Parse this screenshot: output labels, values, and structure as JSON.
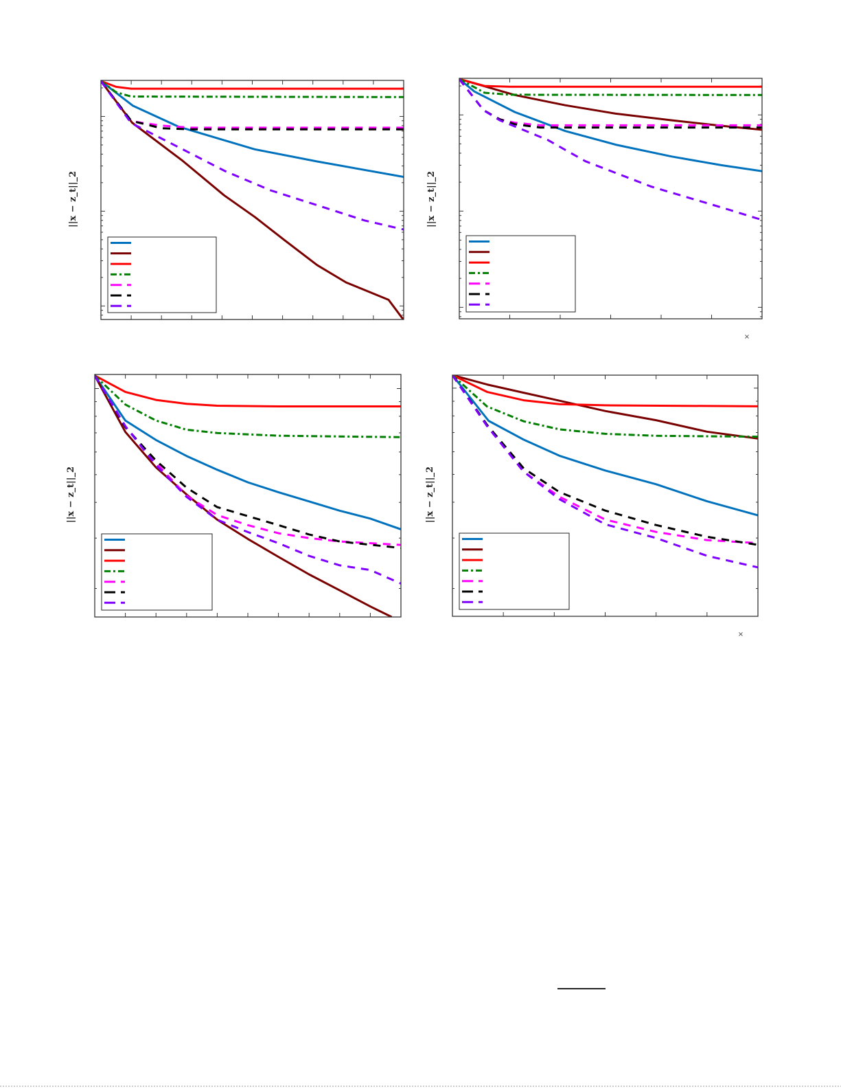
{
  "colors": {
    "blue": "#0072BD",
    "dark_red": "#7A0000",
    "red": "#FF0000",
    "green": "#007F00",
    "magenta": "#FF00FF",
    "black": "#000000",
    "purple": "#7F00FF"
  },
  "chart_data": [
    {
      "type": "line",
      "ylabel": "||x − z_t||_2",
      "yscale": "log",
      "xlim": [
        0,
        10
      ],
      "ylim": [
        0.0072,
        2.4
      ],
      "grid": false,
      "legend_placement": "bottom-left",
      "tick_labels_shown": false,
      "series": [
        {
          "color": "blue",
          "style": "solid",
          "x": [
            0,
            1.05,
            2.56,
            5.08,
            7.14,
            10
          ],
          "y": [
            2.36,
            1.3,
            0.78,
            0.45,
            0.335,
            0.23
          ]
        },
        {
          "color": "dark_red",
          "style": "solid",
          "x": [
            0,
            1.03,
            2.7,
            4.07,
            5.08,
            6.08,
            7.14,
            8.1,
            9.5,
            10
          ],
          "y": [
            2.36,
            0.86,
            0.34,
            0.147,
            0.087,
            0.049,
            0.027,
            0.0177,
            0.0116,
            0.0071
          ]
        },
        {
          "color": "red",
          "style": "solid",
          "x": [
            0,
            0.5,
            1,
            10
          ],
          "y": [
            2.36,
            2.05,
            1.96,
            1.96
          ]
        },
        {
          "color": "green",
          "style": "dashdot",
          "x": [
            0,
            0.5,
            1,
            10
          ],
          "y": [
            2.36,
            1.8,
            1.62,
            1.6
          ]
        },
        {
          "color": "magenta",
          "style": "dashed",
          "x": [
            0,
            1,
            2,
            3,
            10
          ],
          "y": [
            2.36,
            0.89,
            0.8,
            0.76,
            0.76
          ]
        },
        {
          "color": "black",
          "style": "dashed",
          "x": [
            0,
            1,
            2,
            3,
            10
          ],
          "y": [
            2.36,
            0.9,
            0.75,
            0.73,
            0.73
          ]
        },
        {
          "color": "purple",
          "style": "dashed",
          "x": [
            0,
            1.0,
            2.7,
            4.1,
            5.6,
            7.2,
            8.7,
            10
          ],
          "y": [
            2.36,
            0.85,
            0.45,
            0.265,
            0.166,
            0.114,
            0.08,
            0.064
          ]
        }
      ]
    },
    {
      "type": "line",
      "ylabel": "||x − z_t||_2",
      "yscale": "log",
      "xlim": [
        0,
        6
      ],
      "ylim": [
        0.0076,
        2.4
      ],
      "grid": false,
      "legend_placement": "bottom-left",
      "tick_labels_shown": false,
      "x_multiplier_mark": "×",
      "series": [
        {
          "color": "blue",
          "style": "solid",
          "x": [
            0,
            0.3,
            1.1,
            2.1,
            3.1,
            4.2,
            5.2,
            6
          ],
          "y": [
            2.36,
            1.75,
            1.07,
            0.68,
            0.49,
            0.37,
            0.3,
            0.26
          ]
        },
        {
          "color": "dark_red",
          "style": "solid",
          "x": [
            0,
            1.1,
            2.1,
            3.1,
            4.2,
            5.2,
            6
          ],
          "y": [
            2.36,
            1.61,
            1.26,
            1.03,
            0.88,
            0.77,
            0.7
          ]
        },
        {
          "color": "red",
          "style": "solid",
          "x": [
            0,
            0.5,
            1,
            6
          ],
          "y": [
            2.36,
            2.0,
            1.96,
            1.96
          ]
        },
        {
          "color": "green",
          "style": "dashdot",
          "x": [
            0,
            0.5,
            1,
            6
          ],
          "y": [
            2.36,
            1.7,
            1.62,
            1.61
          ]
        },
        {
          "color": "magenta",
          "style": "dashed",
          "x": [
            0,
            0.48,
            0.8,
            1.1,
            1.6,
            6
          ],
          "y": [
            2.36,
            1.12,
            0.9,
            0.83,
            0.78,
            0.78
          ]
        },
        {
          "color": "black",
          "style": "dashed",
          "x": [
            0,
            0.48,
            0.8,
            1.1,
            1.6,
            6
          ],
          "y": [
            2.36,
            1.12,
            0.9,
            0.8,
            0.74,
            0.74
          ]
        },
        {
          "color": "purple",
          "style": "dashed",
          "x": [
            0,
            0.48,
            0.8,
            1.75,
            2.5,
            3.8,
            5.2,
            6
          ],
          "y": [
            2.36,
            1.12,
            0.88,
            0.55,
            0.33,
            0.18,
            0.109,
            0.081
          ]
        }
      ]
    },
    {
      "type": "line",
      "ylabel": "||x − z_t||_2",
      "yscale": "log",
      "xlim": [
        0,
        10
      ],
      "ylim": [
        1.59,
        11.2
      ],
      "grid": false,
      "legend_placement": "bottom-left",
      "tick_labels_shown": false,
      "series": [
        {
          "color": "blue",
          "style": "solid",
          "x": [
            0,
            1,
            2,
            3,
            4,
            5,
            6,
            7,
            8,
            9,
            10
          ],
          "y": [
            11.1,
            7.73,
            6.61,
            5.81,
            5.2,
            4.7,
            4.34,
            4.03,
            3.74,
            3.51,
            3.22
          ]
        },
        {
          "color": "dark_red",
          "style": "solid",
          "x": [
            0,
            1,
            2,
            3,
            4,
            5,
            6,
            7,
            8,
            9,
            9.7
          ],
          "y": [
            11.1,
            7.05,
            5.3,
            4.26,
            3.48,
            2.98,
            2.58,
            2.24,
            1.97,
            1.73,
            1.59
          ]
        },
        {
          "color": "red",
          "style": "solid",
          "x": [
            0,
            1,
            2,
            3,
            4,
            6,
            10
          ],
          "y": [
            11.1,
            9.73,
            9.12,
            8.84,
            8.71,
            8.66,
            8.66
          ]
        },
        {
          "color": "green",
          "style": "dashdot",
          "x": [
            0,
            1,
            2,
            3,
            4,
            6,
            10
          ],
          "y": [
            11.1,
            8.79,
            7.73,
            7.18,
            6.99,
            6.84,
            6.76
          ]
        },
        {
          "color": "magenta",
          "style": "dashed",
          "x": [
            0,
            1,
            2,
            3,
            4,
            5,
            6,
            7,
            8,
            10
          ],
          "y": [
            11.1,
            7.38,
            5.5,
            4.22,
            3.61,
            3.33,
            3.12,
            3.0,
            2.92,
            2.84
          ]
        },
        {
          "color": "black",
          "style": "dashed",
          "x": [
            0,
            1,
            2,
            3,
            4,
            5,
            6,
            7,
            8,
            10
          ],
          "y": [
            11.1,
            7.32,
            5.6,
            4.5,
            3.85,
            3.58,
            3.33,
            3.09,
            2.92,
            2.77
          ]
        },
        {
          "color": "purple",
          "style": "dashed",
          "x": [
            0,
            1,
            2,
            3,
            4,
            5,
            6,
            7,
            8,
            9,
            10
          ],
          "y": [
            11.1,
            7.38,
            5.4,
            4.18,
            3.48,
            3.15,
            2.88,
            2.6,
            2.41,
            2.32,
            2.08
          ]
        }
      ]
    },
    {
      "type": "line",
      "ylabel": "||x − z_t||_2",
      "yscale": "log",
      "xlim": [
        0,
        6
      ],
      "ylim": [
        1.6,
        11.1
      ],
      "grid": false,
      "legend_placement": "bottom-left",
      "tick_labels_shown": false,
      "x_multiplier_mark": "×",
      "series": [
        {
          "color": "blue",
          "style": "solid",
          "x": [
            0,
            0.71,
            1.4,
            2.1,
            3,
            4,
            5,
            6
          ],
          "y": [
            11.1,
            7.69,
            6.61,
            5.81,
            5.16,
            4.62,
            4.03,
            3.6
          ]
        },
        {
          "color": "dark_red",
          "style": "solid",
          "x": [
            0,
            0.68,
            1.4,
            2.1,
            3,
            4,
            5,
            6
          ],
          "y": [
            11.1,
            10.3,
            9.64,
            9.04,
            8.32,
            7.73,
            7.05,
            6.67
          ]
        },
        {
          "color": "red",
          "style": "solid",
          "x": [
            0,
            0.68,
            1.4,
            2.1,
            3,
            6
          ],
          "y": [
            11.1,
            9.7,
            9.07,
            8.79,
            8.71,
            8.64
          ]
        },
        {
          "color": "green",
          "style": "dashdot",
          "x": [
            0,
            0.68,
            1.4,
            2.1,
            3,
            4,
            6
          ],
          "y": [
            11.1,
            8.63,
            7.66,
            7.18,
            6.93,
            6.82,
            6.77
          ]
        },
        {
          "color": "magenta",
          "style": "dashed",
          "x": [
            0,
            0.68,
            1.4,
            2.1,
            3,
            4,
            5,
            6
          ],
          "y": [
            11.1,
            7.38,
            5.11,
            4.18,
            3.48,
            3.15,
            2.95,
            2.88
          ]
        },
        {
          "color": "black",
          "style": "dashed",
          "x": [
            0,
            0.68,
            1.4,
            2.1,
            3,
            4,
            5,
            6
          ],
          "y": [
            11.1,
            7.45,
            5.25,
            4.34,
            3.74,
            3.33,
            3.03,
            2.84
          ]
        },
        {
          "color": "purple",
          "style": "dashed",
          "x": [
            0,
            0.68,
            1.4,
            2.1,
            3,
            4,
            5,
            6
          ],
          "y": [
            11.1,
            7.38,
            5.11,
            4.1,
            3.35,
            3.0,
            2.6,
            2.37
          ]
        }
      ]
    }
  ]
}
